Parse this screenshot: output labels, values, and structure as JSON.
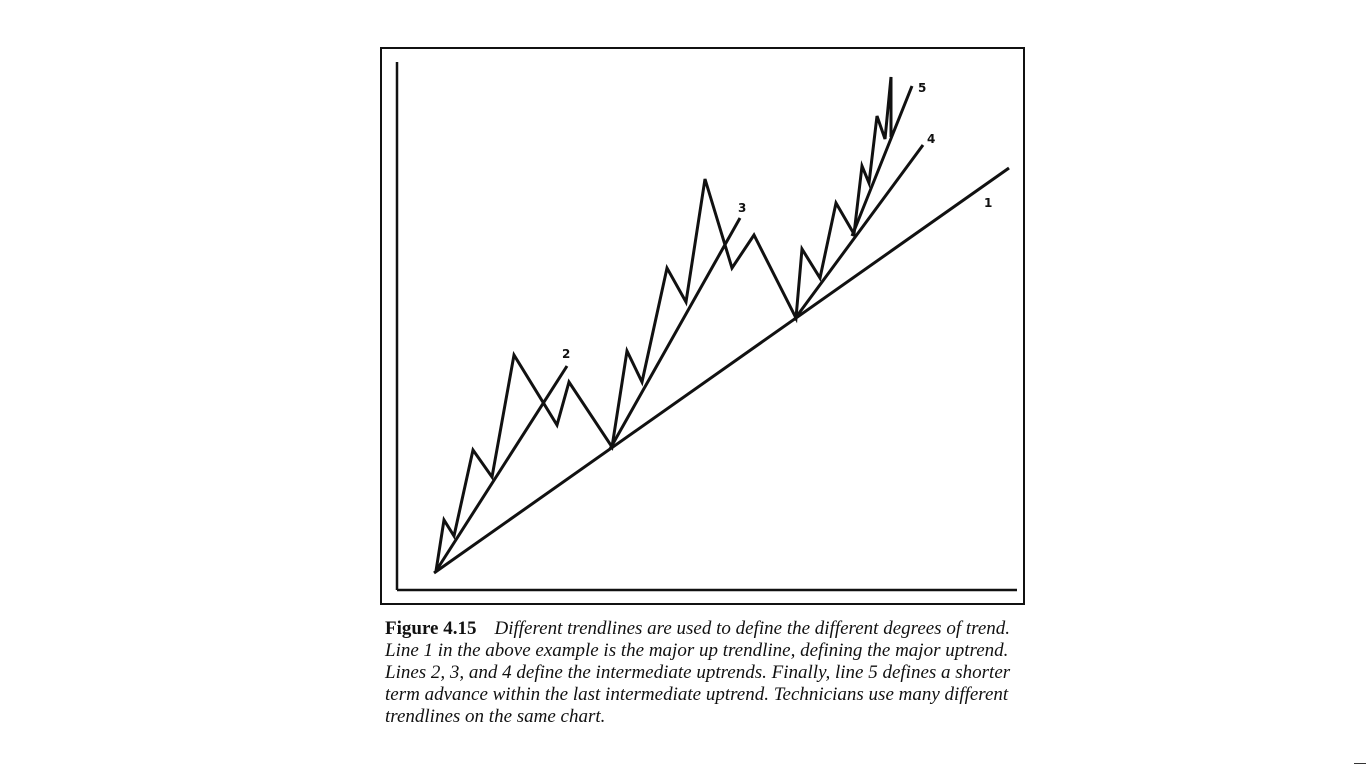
{
  "figure": {
    "line_labels": {
      "line1": "1",
      "line2": "2",
      "line3": "3",
      "line4": "4",
      "line5": "5"
    },
    "caption_label": "Figure 4.15",
    "caption_text": "Different trendlines are used to define the different degrees of trend. Line 1 in the above example is the major up trendline, defining the major uptrend. Lines 2, 3, and 4 define the intermediate uptrends. Finally, line 5 defines a shorter term advance within the last intermediate uptrend. Technicians use many different trendlines on the same chart."
  },
  "colors": {
    "ink": "#111111",
    "background": "#ffffff"
  }
}
